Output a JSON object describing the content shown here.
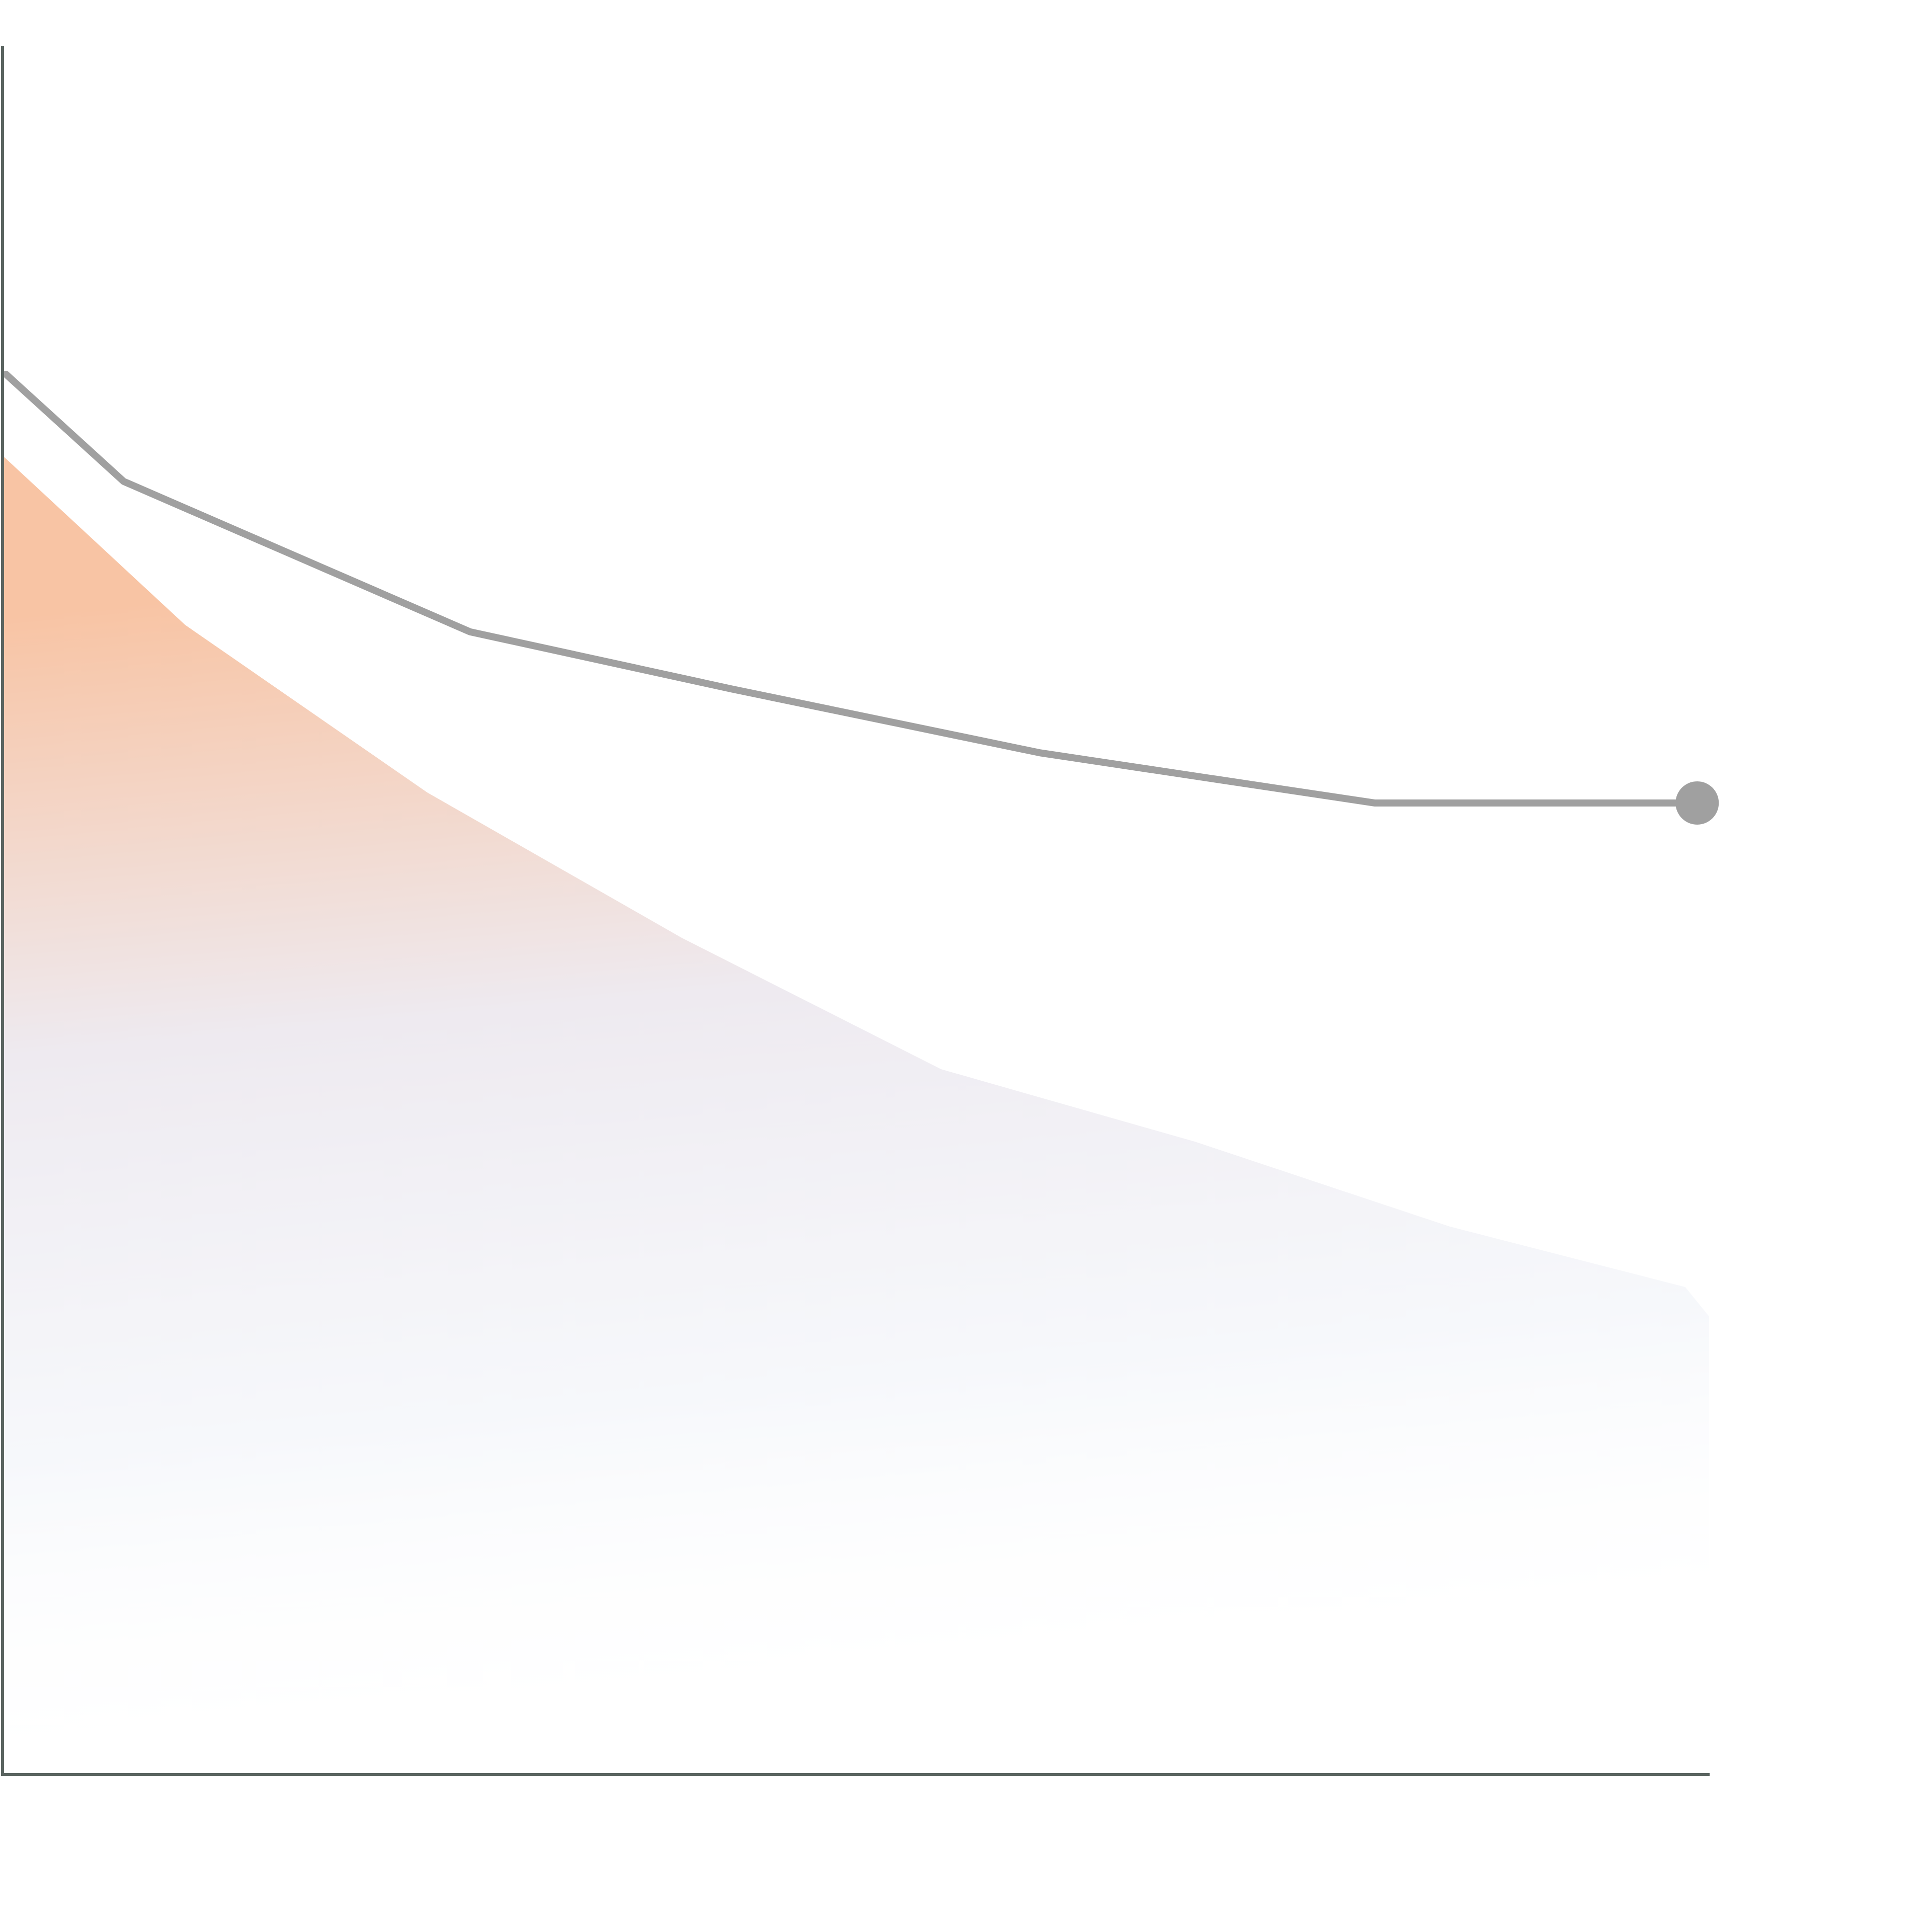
{
  "chart_data": {
    "type": "line",
    "xlim": [
      0,
      100
    ],
    "ylim": [
      0,
      100
    ],
    "series": [
      {
        "mark": "area",
        "color": "#f8c4a4",
        "x": [
          0,
          10.7,
          24.9,
          39.8,
          55.0,
          69.9,
          84.8,
          98.6,
          100
        ],
        "values": [
          76.3,
          66.5,
          56.8,
          48.4,
          40.8,
          36.6,
          31.7,
          28.2,
          26.5
        ]
      },
      {
        "mark": "line",
        "color": "#a0a0a0",
        "end_marker": true,
        "x": [
          0.2,
          7.1,
          16.2,
          27.4,
          42.7,
          60.8,
          80.4,
          99.3
        ],
        "values": [
          81.0,
          74.8,
          70.9,
          66.1,
          62.8,
          59.1,
          56.2,
          56.2
        ]
      }
    ]
  }
}
